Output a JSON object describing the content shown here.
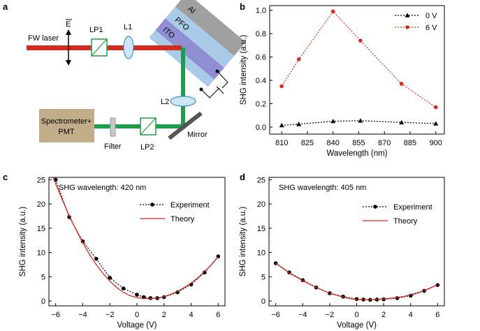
{
  "panels": {
    "a": "a",
    "b": "b",
    "c": "c",
    "d": "d"
  },
  "diagram": {
    "laser": "FW laser",
    "field": "E",
    "lp1": "LP1",
    "l1": "L1",
    "l2": "L2",
    "lp2": "LP2",
    "filter": "Filter",
    "mirror": "Mirror",
    "spectrometer_line1": "Spectrometer+",
    "spectrometer_line2": "PMT",
    "layer_al": "Al",
    "layer_pfo": "PFO",
    "layer_ito": "ITO",
    "colors": {
      "beam_red": "#d42a1e",
      "beam_green": "#1e9e4a",
      "spectrometer": "#c2ad8a"
    }
  },
  "chart_data": [
    {
      "id": "b",
      "type": "line",
      "xlabel": "Wavelength (nm)",
      "ylabel": "SHG intensity (a.u.)",
      "xlim": [
        803,
        905
      ],
      "ylim": [
        -0.06,
        1.04
      ],
      "xticks": [
        "810",
        "825",
        "840",
        "855",
        "870",
        "885",
        "900"
      ],
      "yticks": [
        "0.0",
        "0.2",
        "0.4",
        "0.6",
        "0.8",
        "1.0"
      ],
      "legend_position": "top-right",
      "series": [
        {
          "name": "0 V",
          "color": "#000000",
          "marker": "triangle",
          "x": [
            810,
            820,
            840,
            856,
            880,
            900
          ],
          "y": [
            0.015,
            0.025,
            0.05,
            0.055,
            0.04,
            0.03
          ]
        },
        {
          "name": "6 V",
          "color": "#d42a1e",
          "marker": "circle",
          "x": [
            810,
            820,
            840,
            856,
            880,
            900
          ],
          "y": [
            0.35,
            0.58,
            0.99,
            0.74,
            0.37,
            0.17
          ]
        }
      ]
    },
    {
      "id": "c",
      "type": "line",
      "annotation": "SHG wavelength: 420 nm",
      "xlabel": "Voltage (V)",
      "ylabel": "SHG intensity (a.u.)",
      "xlim": [
        -6.5,
        6.5
      ],
      "ylim": [
        -1,
        25.5
      ],
      "xticks": [
        "−6",
        "−4",
        "−2",
        "0",
        "2",
        "4",
        "6"
      ],
      "yticks": [
        "0",
        "5",
        "10",
        "15",
        "20",
        "25"
      ],
      "legend_position": "top-right",
      "series": [
        {
          "name": "Experiment",
          "color": "#000000",
          "marker": "circle",
          "x": [
            -6,
            -5,
            -4,
            -3,
            -2,
            -1,
            0,
            0.5,
            1,
            1.5,
            2,
            3,
            4,
            5,
            6
          ],
          "y": [
            25,
            17.3,
            12.3,
            8.7,
            4.8,
            2.6,
            1.3,
            0.8,
            0.6,
            0.6,
            0.8,
            1.8,
            3.4,
            5.9,
            9.2
          ]
        },
        {
          "name": "Theory",
          "color": "#d42a1e",
          "marker": "none",
          "x": [
            -6.2,
            -5.5,
            -5,
            -4.5,
            -4,
            -3.5,
            -3,
            -2.5,
            -2,
            -1.5,
            -1,
            -0.5,
            0,
            0.5,
            1,
            1.5,
            2,
            2.5,
            3,
            3.5,
            4,
            4.5,
            5,
            5.5,
            6
          ],
          "y": [
            25.5,
            20.8,
            17.6,
            14.7,
            12.0,
            9.6,
            7.5,
            5.7,
            4.1,
            2.8,
            1.8,
            1.1,
            0.7,
            0.5,
            0.5,
            0.6,
            0.9,
            1.4,
            2.0,
            2.8,
            3.7,
            4.8,
            6.1,
            7.5,
            9.1
          ]
        }
      ]
    },
    {
      "id": "d",
      "type": "line",
      "annotation": "SHG wavelength: 405 nm",
      "xlabel": "Voltage (V)",
      "ylabel": "SHG intensity (a.u.)",
      "xlim": [
        -6.5,
        6.5
      ],
      "ylim": [
        -1,
        25.5
      ],
      "xticks": [
        "−6",
        "−4",
        "−2",
        "0",
        "2",
        "4",
        "6"
      ],
      "yticks": [
        "0",
        "5",
        "10",
        "15",
        "20",
        "25"
      ],
      "legend_position": "top-right",
      "series": [
        {
          "name": "Experiment",
          "color": "#000000",
          "marker": "circle",
          "x": [
            -6,
            -5,
            -4,
            -3,
            -2,
            -1,
            0,
            0.5,
            1,
            1.5,
            2,
            3,
            4,
            5,
            6
          ],
          "y": [
            7.8,
            5.9,
            4.3,
            2.8,
            1.6,
            0.9,
            0.4,
            0.3,
            0.25,
            0.3,
            0.35,
            0.6,
            1.1,
            2.1,
            3.3
          ]
        },
        {
          "name": "Theory",
          "color": "#d42a1e",
          "marker": "none",
          "x": [
            -6,
            -5.5,
            -5,
            -4.5,
            -4,
            -3.5,
            -3,
            -2.5,
            -2,
            -1.5,
            -1,
            -0.5,
            0,
            0.5,
            1,
            1.5,
            2,
            2.5,
            3,
            3.5,
            4,
            4.5,
            5,
            5.5,
            6
          ],
          "y": [
            7.8,
            6.8,
            5.8,
            5.0,
            4.2,
            3.5,
            2.8,
            2.2,
            1.6,
            1.2,
            0.8,
            0.5,
            0.35,
            0.3,
            0.3,
            0.35,
            0.45,
            0.55,
            0.7,
            0.95,
            1.3,
            1.7,
            2.2,
            2.75,
            3.4
          ]
        }
      ]
    }
  ]
}
